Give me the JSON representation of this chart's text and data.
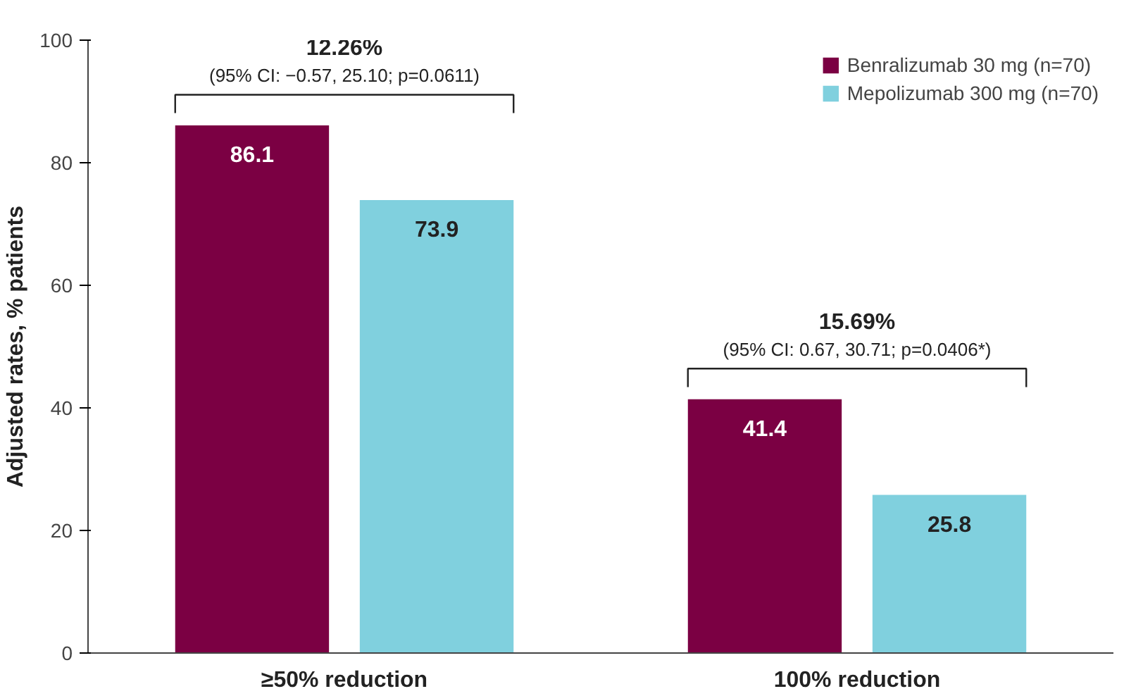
{
  "chart_data": {
    "type": "bar",
    "ylabel": "Adjusted rates, % patients",
    "categories": [
      "≥50% reduction",
      "100% reduction"
    ],
    "series": [
      {
        "name": "Benralizumab 30 mg (n=70)",
        "color": "#7b0043",
        "values": [
          86.1,
          41.4
        ]
      },
      {
        "name": "Mepolizumab 300 mg (n=70)",
        "color": "#80d0de",
        "values": [
          73.9,
          25.8
        ]
      }
    ],
    "ylim": [
      0,
      100
    ],
    "yticks": [
      0,
      20,
      40,
      60,
      80,
      100
    ],
    "grid": false,
    "legend": "top right",
    "data_labels": true,
    "annotations": [
      "12.26%",
      "(95% CI: −0.57, 25.10; p=0.0611)",
      "15.69%",
      "(95% CI: 0.67, 30.71; p=0.0406*)"
    ]
  }
}
